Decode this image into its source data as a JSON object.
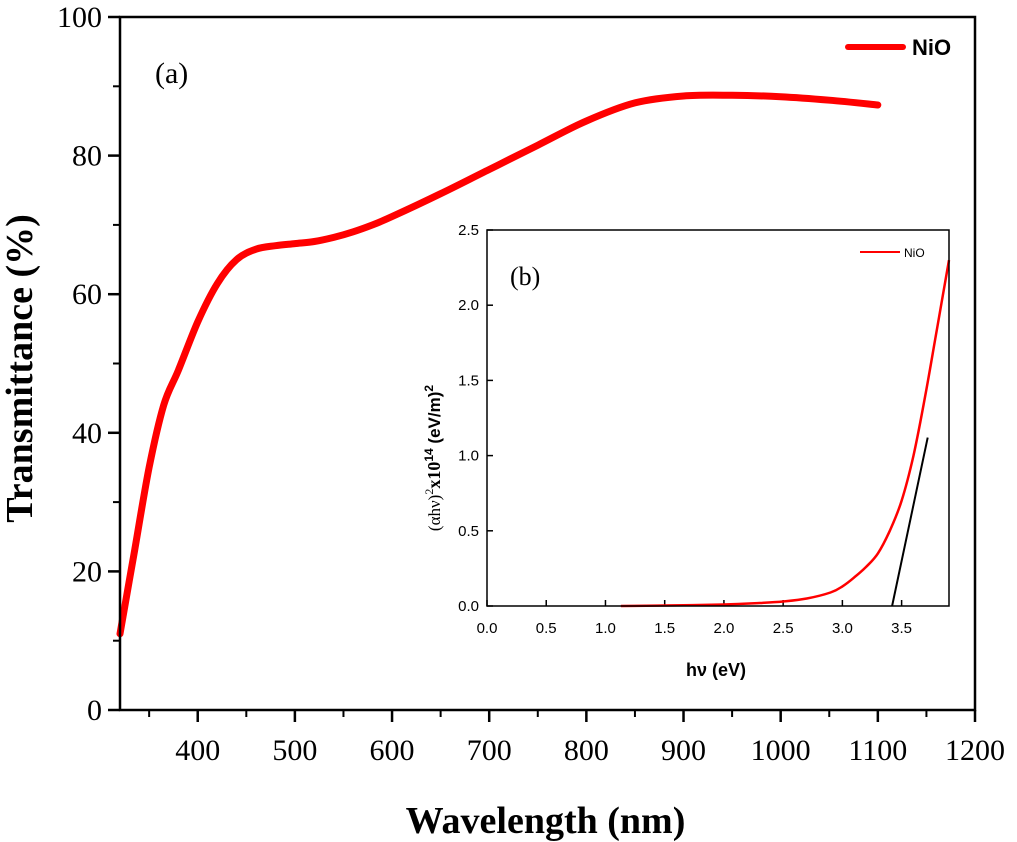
{
  "chart_data": [
    {
      "type": "line",
      "panel_label": "(a)",
      "xlabel": "Wavelength (nm)",
      "ylabel": "Transmittance (%)",
      "xlim": [
        320,
        1200
      ],
      "ylim": [
        0,
        100
      ],
      "xticks": [
        400,
        500,
        600,
        700,
        800,
        900,
        1000,
        1100,
        1200
      ],
      "yticks": [
        0,
        20,
        40,
        60,
        80,
        100
      ],
      "legend": "top-right",
      "grid": false,
      "series": [
        {
          "name": "NiO",
          "color": "#ff0000",
          "x": [
            320,
            335,
            350,
            365,
            380,
            400,
            420,
            440,
            460,
            480,
            500,
            520,
            540,
            560,
            580,
            600,
            650,
            700,
            750,
            800,
            850,
            900,
            950,
            1000,
            1050,
            1100
          ],
          "y": [
            11,
            23,
            35,
            44,
            49,
            56,
            61.5,
            65,
            66.5,
            67,
            67.3,
            67.6,
            68.2,
            69,
            70,
            71.2,
            74.5,
            78,
            81.5,
            85,
            87.6,
            88.6,
            88.7,
            88.5,
            88,
            87.3
          ]
        }
      ]
    },
    {
      "type": "line",
      "panel_label": "(b)",
      "xlabel": "hν (eV)",
      "ylabel_main": "(αhν)",
      "ylabel_exp1": "2",
      "ylabel_mid": "x10",
      "ylabel_exp2": "14",
      "ylabel_unit": " (eV/m)",
      "ylabel_exp3": "2",
      "xlim": [
        0,
        3.9
      ],
      "ylim": [
        0,
        2.5
      ],
      "xticks": [
        "0.0",
        "0.5",
        "1.0",
        "1.5",
        "2.0",
        "2.5",
        "3.0",
        "3.5"
      ],
      "yticks": [
        "0.0",
        "0.5",
        "1.0",
        "1.5",
        "2.0",
        "2.5"
      ],
      "legend": "top-right",
      "grid": false,
      "series": [
        {
          "name": "NiO",
          "color": "#ff0000",
          "x": [
            1.13,
            1.5,
            2.0,
            2.3,
            2.5,
            2.7,
            2.9,
            3.0,
            3.1,
            3.2,
            3.3,
            3.4,
            3.5,
            3.6,
            3.7,
            3.8,
            3.9
          ],
          "y": [
            0.0,
            0.003,
            0.01,
            0.02,
            0.03,
            0.05,
            0.09,
            0.13,
            0.19,
            0.26,
            0.35,
            0.5,
            0.7,
            1.0,
            1.4,
            1.85,
            2.3
          ]
        },
        {
          "name": "",
          "color": "#000000",
          "x": [
            3.42,
            3.72
          ],
          "y": [
            0.0,
            1.12
          ]
        }
      ]
    }
  ]
}
